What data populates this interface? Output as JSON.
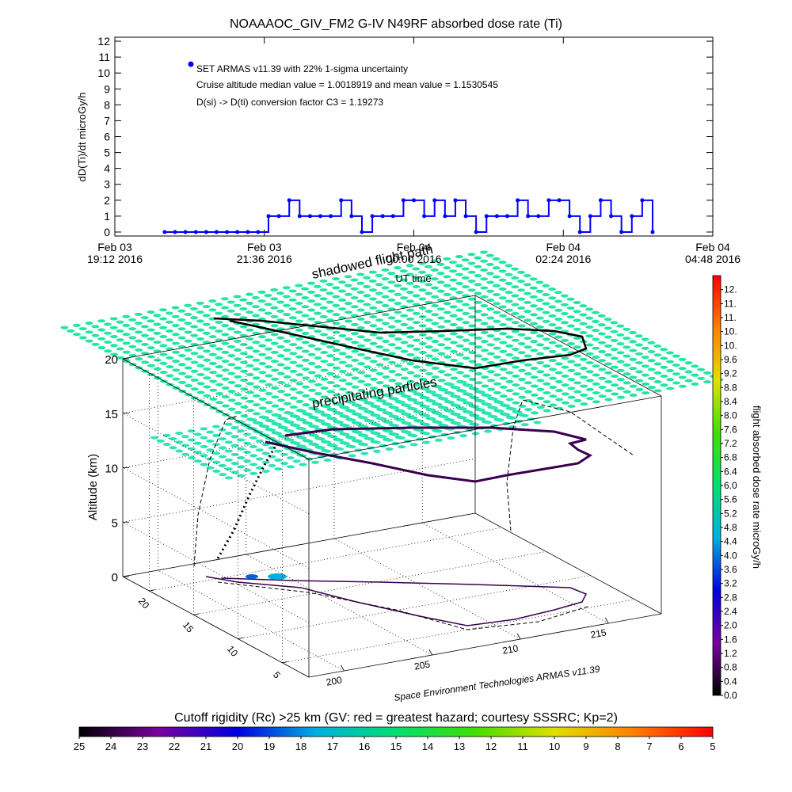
{
  "chart_data": [
    {
      "type": "line",
      "title": "NOAAAOC_GIV_FM2 G-IV    N49RF  absorbed dose rate (Ti)",
      "ylabel": "dD(Ti)/dt microGy/h",
      "xlabel": "UT time",
      "annotations": [
        "Cruise altitude median value = 1.0018919 and mean value = 1.1530545",
        "D(si) -> D(ti) conversion factor C3 = 1.19273"
      ],
      "xlim": [
        "2016-02-03T19:12",
        "2016-02-04T04:48"
      ],
      "xticks": [
        {
          "value": "2016-02-03T19:12",
          "label": [
            "Feb 03",
            "19:12 2016"
          ]
        },
        {
          "value": "2016-02-03T21:36",
          "label": [
            "Feb 03",
            "21:36 2016"
          ]
        },
        {
          "value": "2016-02-04T00:00",
          "label": [
            "Feb 04",
            "00:00 2016"
          ]
        },
        {
          "value": "2016-02-04T02:24",
          "label": [
            "Feb 04",
            "02:24 2016"
          ]
        },
        {
          "value": "2016-02-04T04:48",
          "label": [
            "Feb 04",
            "04:48 2016"
          ]
        }
      ],
      "ylim": [
        -0.25,
        12.25
      ],
      "yticks": [
        0,
        1,
        2,
        3,
        4,
        5,
        6,
        7,
        8,
        9,
        10,
        11,
        12
      ],
      "x": [
        "2016-02-03T20:00",
        "2016-02-03T20:10",
        "2016-02-03T20:20",
        "2016-02-03T20:30",
        "2016-02-03T20:40",
        "2016-02-03T20:50",
        "2016-02-03T21:00",
        "2016-02-03T21:10",
        "2016-02-03T21:20",
        "2016-02-03T21:30",
        "2016-02-03T21:40",
        "2016-02-03T21:50",
        "2016-02-03T22:00",
        "2016-02-03T22:10",
        "2016-02-03T22:20",
        "2016-02-03T22:30",
        "2016-02-03T22:40",
        "2016-02-03T22:50",
        "2016-02-03T23:00",
        "2016-02-03T23:10",
        "2016-02-03T23:20",
        "2016-02-03T23:30",
        "2016-02-03T23:40",
        "2016-02-03T23:50",
        "2016-02-04T00:00",
        "2016-02-04T00:10",
        "2016-02-04T00:20",
        "2016-02-04T00:30",
        "2016-02-04T00:40",
        "2016-02-04T00:50",
        "2016-02-04T01:00",
        "2016-02-04T01:10",
        "2016-02-04T01:20",
        "2016-02-04T01:30",
        "2016-02-04T01:40",
        "2016-02-04T01:50",
        "2016-02-04T02:00",
        "2016-02-04T02:10",
        "2016-02-04T02:20",
        "2016-02-04T02:30",
        "2016-02-04T02:40",
        "2016-02-04T02:50",
        "2016-02-04T03:00",
        "2016-02-04T03:10",
        "2016-02-04T03:20",
        "2016-02-04T03:30",
        "2016-02-04T03:40",
        "2016-02-04T03:50"
      ],
      "series": [
        {
          "name": "SET ARMAS v11.39 with 22% 1-sigma uncertainty",
          "color": "#0000ff",
          "values": [
            0,
            0,
            0,
            0,
            0,
            0,
            0,
            0,
            0,
            0,
            1,
            1,
            2,
            1,
            1,
            1,
            1,
            2,
            1,
            0,
            1,
            1,
            1,
            2,
            2,
            1,
            2,
            1,
            2,
            1,
            0,
            1,
            1,
            1,
            2,
            1,
            1,
            2,
            2,
            1,
            0,
            1,
            2,
            1,
            0,
            1,
            2,
            0
          ]
        }
      ]
    },
    {
      "type": "surface3d",
      "zlabel": "Altitude (km)",
      "annotations": [
        "shadowed flight path",
        "precipitating particles"
      ],
      "credit": "Space Environment Technologies ARMAS v11.39",
      "xlim": [
        198,
        218
      ],
      "xticks": [
        200,
        205,
        210,
        215
      ],
      "ylim": [
        2,
        23
      ],
      "yticks": [
        5,
        10,
        15,
        20
      ],
      "zlim": [
        0,
        20
      ],
      "zticks": [
        0,
        5,
        10,
        15,
        20
      ]
    },
    {
      "type": "colorbar",
      "orientation": "vertical",
      "label": "flight absorbed dose rate microGy/h",
      "lim": [
        0,
        12
      ],
      "colors": [
        "#000000",
        "#7a00a0",
        "#0000e0",
        "#00b0e0",
        "#00e070",
        "#40e000",
        "#e0e000",
        "#ff8000",
        "#ff0000"
      ],
      "ticks": [
        {
          "value": 11.6,
          "label": "12."
        },
        {
          "value": 11.2,
          "label": "11."
        },
        {
          "value": 10.8,
          "label": "11."
        },
        {
          "value": 10.4,
          "label": "10."
        },
        {
          "value": 10,
          "label": "10."
        },
        9.6,
        9.2,
        8.8,
        8.4,
        {
          "value": 8,
          "label": "8.0"
        },
        7.6,
        7.2,
        6.8,
        6.4,
        {
          "value": 6,
          "label": "6.0"
        },
        5.6,
        5.2,
        4.8,
        4.4,
        {
          "value": 4,
          "label": "4.0"
        },
        3.6,
        3.2,
        2.8,
        2.4,
        {
          "value": 2,
          "label": "2.0"
        },
        1.6,
        1.2,
        0.8,
        0.4,
        {
          "value": 0,
          "label": "0.0"
        }
      ]
    },
    {
      "type": "colorbar",
      "orientation": "horizontal",
      "title": "Cutoff rigidity (Rc) >25 km (GV: red = greatest hazard; courtesy SSSRC; Kp=2)",
      "lim": [
        25,
        5
      ],
      "colors": [
        "#000000",
        "#7a00a0",
        "#0000e0",
        "#00b0e0",
        "#00e070",
        "#40e000",
        "#e0e000",
        "#ff8000",
        "#ff0000"
      ],
      "ticks": [
        25,
        24,
        23,
        22,
        21,
        20,
        19,
        18,
        17,
        16,
        15,
        14,
        13,
        12,
        11,
        10,
        9,
        8,
        7,
        6,
        5
      ]
    }
  ]
}
